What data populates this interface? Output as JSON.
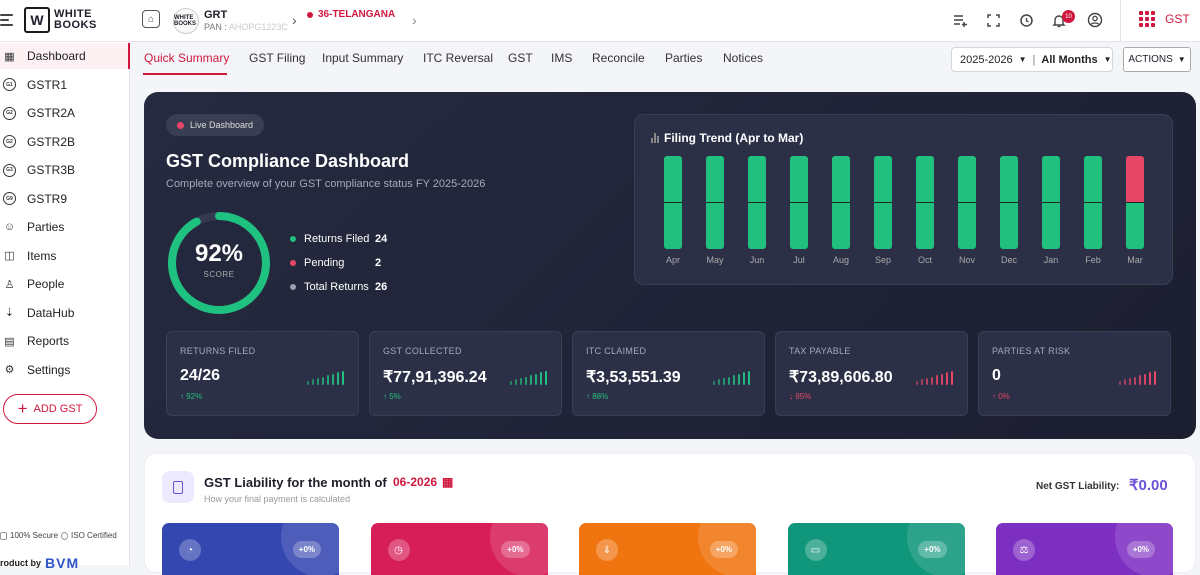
{
  "brand": {
    "mark": "W",
    "line1": "WHITE",
    "line2": "BOOKS"
  },
  "org": {
    "avatar": "WHITE BOOKS",
    "name": "GRT",
    "pan_label": "PAN :",
    "pan_value": "AHOPG1223C"
  },
  "state": "36-TELANGANA",
  "notifications": "10",
  "gst_button": "GST",
  "sidebar": {
    "items": [
      {
        "label": "Dashboard",
        "icon": "grid-icon"
      },
      {
        "label": "GSTR1",
        "icon": "gstr1-icon",
        "short": "G1"
      },
      {
        "label": "GSTR2A",
        "icon": "gstr2a-icon",
        "short": "G2"
      },
      {
        "label": "GSTR2B",
        "icon": "gstr2b-icon",
        "short": "G2"
      },
      {
        "label": "GSTR3B",
        "icon": "gstr3b-icon",
        "short": "G3"
      },
      {
        "label": "GSTR9",
        "icon": "gstr9-icon",
        "short": "G9"
      },
      {
        "label": "Parties",
        "icon": "parties-icon"
      },
      {
        "label": "Items",
        "icon": "box-icon"
      },
      {
        "label": "People",
        "icon": "person-icon"
      },
      {
        "label": "DataHub",
        "icon": "download-icon"
      },
      {
        "label": "Reports",
        "icon": "reports-icon"
      },
      {
        "label": "Settings",
        "icon": "gear-icon"
      }
    ],
    "add_gst": "ADD GST",
    "secure": "100% Secure",
    "iso": "ISO Certified",
    "product_by": "roduct by",
    "bvm": "BVM"
  },
  "tabs": [
    "Quick Summary",
    "GST Filing",
    "Input Summary",
    "ITC Reversal",
    "GST",
    "IMS",
    "Reconcile",
    "Parties",
    "Notices"
  ],
  "filters": {
    "year": "2025-2026",
    "months": "All Months",
    "actions": "ACTIONS"
  },
  "dashboard": {
    "live": "Live Dashboard",
    "title": "GST Compliance Dashboard",
    "subtitle": "Complete overview of your GST compliance status FY 2025-2026",
    "score": "92%",
    "score_fraction": 0.92,
    "score_label": "SCORE",
    "legend": [
      {
        "label": "Returns Filed",
        "value": "24",
        "color": "#22c07e"
      },
      {
        "label": "Pending",
        "value": "2",
        "color": "#e74766"
      },
      {
        "label": "Total Returns",
        "value": "26",
        "color": "#9aa0b2"
      }
    ],
    "trend_title": "Filing Trend (Apr to Mar)"
  },
  "chart_data": {
    "type": "bar",
    "title": "Filing Trend (Apr to Mar)",
    "categories": [
      "Apr",
      "May",
      "Jun",
      "Jul",
      "Aug",
      "Sep",
      "Oct",
      "Nov",
      "Dec",
      "Jan",
      "Feb",
      "Mar"
    ],
    "series": [
      {
        "name": "Filed",
        "values": [
          2,
          2,
          2,
          2,
          2,
          2,
          2,
          2,
          2,
          2,
          2,
          1
        ]
      },
      {
        "name": "Pending",
        "values": [
          0,
          0,
          0,
          0,
          0,
          0,
          0,
          0,
          0,
          0,
          0,
          1
        ]
      }
    ],
    "colors": {
      "filed": "#22c07e",
      "pending": "#e74766"
    }
  },
  "stats": [
    {
      "label": "RETURNS FILED",
      "value": "24/26",
      "change": "↑ 92%",
      "trend": "up",
      "spark": [
        3,
        4,
        5,
        6,
        7,
        8,
        9,
        10
      ]
    },
    {
      "label": "GST COLLECTED",
      "value": "₹77,91,396.24",
      "change": "↑ 5%",
      "trend": "up",
      "spark": [
        3,
        4,
        5,
        6,
        7,
        8,
        9,
        10
      ]
    },
    {
      "label": "ITC CLAIMED",
      "value": "₹3,53,551.39",
      "change": "↑ 88%",
      "trend": "up",
      "spark": [
        3,
        4,
        5,
        6,
        7,
        8,
        9,
        10
      ]
    },
    {
      "label": "TAX PAYABLE",
      "value": "₹73,89,606.80",
      "change": "↓ 95%",
      "trend": "down",
      "spark": [
        3,
        4,
        5,
        6,
        7,
        8,
        9,
        10
      ]
    },
    {
      "label": "PARTIES AT RISK",
      "value": "0",
      "change": "↑ 0%",
      "trend": "down",
      "spark": [
        3,
        4,
        5,
        6,
        7,
        8,
        9,
        10
      ]
    }
  ],
  "liability": {
    "title": "GST Liability for the month of",
    "month": "06-2026",
    "subtitle": "How your final payment is calculated",
    "net_label": "Net GST Liability:",
    "net_value": "₹0.00",
    "cards": [
      {
        "pct": "+0%",
        "icon": "pie-icon",
        "color": "#3446b0"
      },
      {
        "pct": "+0%",
        "icon": "clock-icon",
        "color": "#d71e59"
      },
      {
        "pct": "+0%",
        "icon": "download-icon",
        "color": "#f07410"
      },
      {
        "pct": "+0%",
        "icon": "wallet-icon",
        "color": "#10967a"
      },
      {
        "pct": "+0%",
        "icon": "scale-icon",
        "color": "#7d2fc2"
      }
    ]
  }
}
